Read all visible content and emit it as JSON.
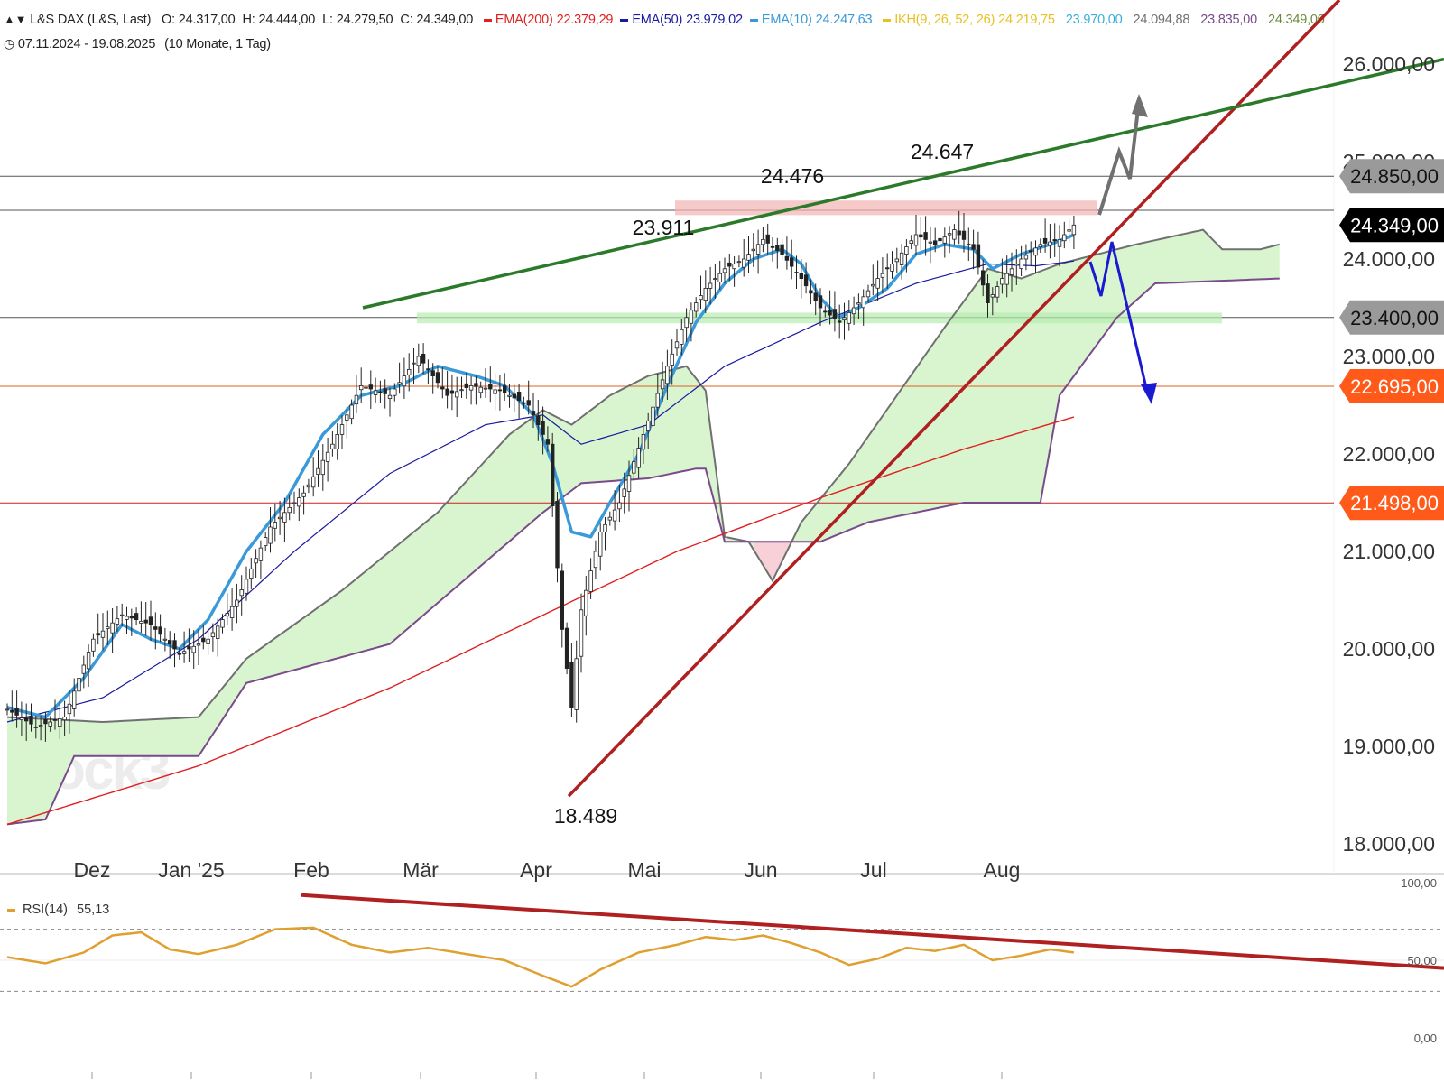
{
  "header": {
    "symbol_icon": "bar-chart-icon",
    "title": "L&S DAX (L&S, Last)",
    "ohlc": [
      {
        "label": "O:",
        "value": "24.317,00"
      },
      {
        "label": "H:",
        "value": "24.444,00"
      },
      {
        "label": "L:",
        "value": "24.279,50"
      },
      {
        "label": "C:",
        "value": "24.349,00"
      }
    ],
    "indicators": [
      {
        "name": "EMA(200)",
        "value": "22.379,29",
        "color": "#e02020"
      },
      {
        "name": "EMA(50)",
        "value": "23.979,02",
        "color": "#1a1aa0"
      },
      {
        "name": "EMA(10)",
        "value": "24.247,63",
        "color": "#3a9ad9"
      }
    ],
    "ichimoku": {
      "name": "IKH(9, 26, 52, 26)",
      "color": "#e8c020",
      "values": [
        {
          "value": "24.219,75",
          "color": "#e8c020"
        },
        {
          "value": "23.970,00",
          "color": "#3aaed8"
        },
        {
          "value": "24.094,88",
          "color": "#707070"
        },
        {
          "value": "23.835,00",
          "color": "#7a4a8a"
        },
        {
          "value": "24.349,00",
          "color": "#6a8a3a"
        }
      ]
    },
    "clock_icon": "clock-icon",
    "range": "07.11.2024 - 19.08.2025",
    "range_detail": "(10 Monate, 1 Tag)"
  },
  "colors": {
    "candle": "#222222",
    "ema200": "#e02020",
    "ema50": "#1a1aa0",
    "ema10": "#3a9ad9",
    "span_a": "#707070",
    "span_b": "#7a4a8a",
    "cloud_bull": "#d8f5d0",
    "cloud_bear": "#f8d0d8",
    "trend_red": "#b02020",
    "trend_green": "#2a7a2a",
    "orange_tag": "#ff5a1a",
    "rsi": "#e0a030"
  },
  "price_axis": {
    "labels": [
      "26.000,00",
      "25.000,00",
      "24.000,00",
      "23.000,00",
      "22.000,00",
      "21.000,00",
      "20.000,00",
      "19.000,00",
      "18.000,00"
    ],
    "tags": [
      {
        "text": "24.850,00",
        "value": 24850,
        "style": "gray"
      },
      {
        "text": "24.349,00",
        "value": 24349,
        "style": "black"
      },
      {
        "text": "23.400,00",
        "value": 23400,
        "style": "gray"
      },
      {
        "text": "22.695,00",
        "value": 22695,
        "style": "orange"
      },
      {
        "text": "21.498,00",
        "value": 21498,
        "style": "orange"
      }
    ]
  },
  "months": [
    {
      "label": "Dez",
      "x": 102
    },
    {
      "label": "Jan '25",
      "x": 212
    },
    {
      "label": "Feb",
      "x": 345
    },
    {
      "label": "Mär",
      "x": 466
    },
    {
      "label": "Apr",
      "x": 594
    },
    {
      "label": "Mai",
      "x": 714
    },
    {
      "label": "Jun",
      "x": 843
    },
    {
      "label": "Jul",
      "x": 968
    },
    {
      "label": "Aug",
      "x": 1110
    }
  ],
  "annotations": [
    {
      "text": "23.911",
      "x": 735,
      "y": 260
    },
    {
      "text": "24.476",
      "x": 878,
      "y": 203
    },
    {
      "text": "24.647",
      "x": 1044,
      "y": 176
    },
    {
      "text": "18.489",
      "x": 649,
      "y": 912
    }
  ],
  "rsi": {
    "legend": "RSI(14)",
    "value": "55,13",
    "axis": [
      "100,00",
      "50,00",
      "0,00"
    ]
  },
  "watermark": "stock3",
  "chart_data": {
    "type": "candlestick",
    "title": "L&S DAX (L&S, Last)",
    "period": "07.11.2024 - 19.08.2025",
    "interval": "1 Tag",
    "ylim": [
      18000,
      26500
    ],
    "pivots": [
      {
        "label": "23.911",
        "value": 23911
      },
      {
        "label": "24.476",
        "value": 24476
      },
      {
        "label": "24.647",
        "value": 24647
      },
      {
        "label": "18.489",
        "value": 18489
      }
    ],
    "horizontal_levels": [
      24850,
      24500,
      23400,
      22695,
      21498
    ],
    "close_anchors": [
      [
        0,
        19380
      ],
      [
        6,
        19200
      ],
      [
        12,
        19300
      ],
      [
        18,
        20100
      ],
      [
        24,
        20350
      ],
      [
        30,
        20250
      ],
      [
        36,
        19950
      ],
      [
        42,
        20100
      ],
      [
        48,
        20500
      ],
      [
        55,
        21250
      ],
      [
        62,
        21600
      ],
      [
        68,
        22100
      ],
      [
        74,
        22700
      ],
      [
        80,
        22600
      ],
      [
        86,
        23000
      ],
      [
        92,
        22600
      ],
      [
        97,
        22700
      ],
      [
        103,
        22650
      ],
      [
        109,
        22500
      ],
      [
        113,
        22100
      ],
      [
        116,
        20200
      ],
      [
        118,
        19400
      ],
      [
        120,
        20400
      ],
      [
        124,
        21200
      ],
      [
        128,
        21500
      ],
      [
        133,
        22200
      ],
      [
        138,
        22900
      ],
      [
        142,
        23400
      ],
      [
        146,
        23700
      ],
      [
        150,
        23900
      ],
      [
        154,
        24000
      ],
      [
        158,
        24200
      ],
      [
        162,
        24050
      ],
      [
        166,
        23800
      ],
      [
        170,
        23500
      ],
      [
        174,
        23350
      ],
      [
        178,
        23550
      ],
      [
        182,
        23800
      ],
      [
        186,
        24000
      ],
      [
        190,
        24250
      ],
      [
        194,
        24150
      ],
      [
        198,
        24300
      ],
      [
        202,
        24100
      ],
      [
        205,
        23550
      ],
      [
        208,
        23800
      ],
      [
        212,
        24000
      ],
      [
        216,
        24150
      ],
      [
        220,
        24200
      ],
      [
        223,
        24349
      ]
    ],
    "ema10_anchors": [
      [
        0,
        19400
      ],
      [
        8,
        19300
      ],
      [
        16,
        19700
      ],
      [
        24,
        20250
      ],
      [
        30,
        20100
      ],
      [
        36,
        20000
      ],
      [
        42,
        20300
      ],
      [
        50,
        21000
      ],
      [
        58,
        21500
      ],
      [
        66,
        22200
      ],
      [
        74,
        22600
      ],
      [
        82,
        22700
      ],
      [
        90,
        22900
      ],
      [
        98,
        22800
      ],
      [
        104,
        22700
      ],
      [
        110,
        22400
      ],
      [
        114,
        21900
      ],
      [
        118,
        21200
      ],
      [
        122,
        21150
      ],
      [
        126,
        21500
      ],
      [
        132,
        22000
      ],
      [
        138,
        22700
      ],
      [
        144,
        23350
      ],
      [
        150,
        23750
      ],
      [
        156,
        24000
      ],
      [
        162,
        24100
      ],
      [
        166,
        23950
      ],
      [
        170,
        23600
      ],
      [
        174,
        23400
      ],
      [
        178,
        23500
      ],
      [
        184,
        23700
      ],
      [
        190,
        24050
      ],
      [
        196,
        24150
      ],
      [
        202,
        24100
      ],
      [
        206,
        23900
      ],
      [
        212,
        24050
      ],
      [
        218,
        24150
      ],
      [
        223,
        24247
      ]
    ],
    "ema50_anchors": [
      [
        0,
        19250
      ],
      [
        20,
        19500
      ],
      [
        40,
        20100
      ],
      [
        60,
        21000
      ],
      [
        80,
        21800
      ],
      [
        100,
        22300
      ],
      [
        112,
        22400
      ],
      [
        120,
        22100
      ],
      [
        134,
        22300
      ],
      [
        150,
        22900
      ],
      [
        170,
        23350
      ],
      [
        190,
        23750
      ],
      [
        205,
        23950
      ],
      [
        215,
        23930
      ],
      [
        223,
        23979
      ]
    ],
    "ema200_anchors": [
      [
        0,
        18200
      ],
      [
        40,
        18800
      ],
      [
        80,
        19600
      ],
      [
        110,
        20300
      ],
      [
        140,
        21000
      ],
      [
        170,
        21550
      ],
      [
        200,
        22050
      ],
      [
        223,
        22379
      ]
    ],
    "span_a_anchors": [
      [
        0,
        19300
      ],
      [
        20,
        19250
      ],
      [
        40,
        19300
      ],
      [
        50,
        19900
      ],
      [
        70,
        20600
      ],
      [
        90,
        21400
      ],
      [
        105,
        22200
      ],
      [
        112,
        22450
      ],
      [
        118,
        22300
      ],
      [
        126,
        22600
      ],
      [
        134,
        22800
      ],
      [
        142,
        22900
      ],
      [
        146,
        22650
      ],
      [
        150,
        21150
      ],
      [
        155,
        21100
      ],
      [
        160,
        20700
      ],
      [
        166,
        21300
      ],
      [
        176,
        21900
      ],
      [
        186,
        22600
      ],
      [
        196,
        23300
      ],
      [
        205,
        23900
      ],
      [
        212,
        23800
      ],
      [
        220,
        23950
      ],
      [
        236,
        24150
      ],
      [
        250,
        24300
      ],
      [
        254,
        24100
      ],
      [
        262,
        24100
      ],
      [
        266,
        24150
      ]
    ],
    "span_b_anchors": [
      [
        0,
        18200
      ],
      [
        8,
        18250
      ],
      [
        14,
        18900
      ],
      [
        40,
        18900
      ],
      [
        50,
        19650
      ],
      [
        80,
        20050
      ],
      [
        112,
        21400
      ],
      [
        120,
        21700
      ],
      [
        134,
        21750
      ],
      [
        144,
        21850
      ],
      [
        146,
        21850
      ],
      [
        150,
        21100
      ],
      [
        170,
        21100
      ],
      [
        180,
        21300
      ],
      [
        200,
        21500
      ],
      [
        216,
        21500
      ],
      [
        220,
        22600
      ],
      [
        226,
        23000
      ],
      [
        232,
        23400
      ],
      [
        240,
        23750
      ],
      [
        266,
        23800
      ]
    ],
    "rsi_anchors": [
      [
        0,
        52
      ],
      [
        8,
        48
      ],
      [
        16,
        55
      ],
      [
        22,
        66
      ],
      [
        28,
        68
      ],
      [
        34,
        57
      ],
      [
        40,
        54
      ],
      [
        48,
        60
      ],
      [
        56,
        70
      ],
      [
        64,
        71
      ],
      [
        72,
        60
      ],
      [
        80,
        55
      ],
      [
        88,
        58
      ],
      [
        96,
        54
      ],
      [
        104,
        50
      ],
      [
        112,
        40
      ],
      [
        118,
        33
      ],
      [
        124,
        44
      ],
      [
        132,
        55
      ],
      [
        140,
        60
      ],
      [
        146,
        65
      ],
      [
        152,
        63
      ],
      [
        158,
        66
      ],
      [
        164,
        61
      ],
      [
        170,
        55
      ],
      [
        176,
        47
      ],
      [
        182,
        51
      ],
      [
        188,
        58
      ],
      [
        194,
        56
      ],
      [
        200,
        60
      ],
      [
        206,
        50
      ],
      [
        212,
        53
      ],
      [
        218,
        57
      ],
      [
        223,
        55
      ]
    ],
    "rsi_axis": [
      0,
      50,
      100
    ]
  }
}
